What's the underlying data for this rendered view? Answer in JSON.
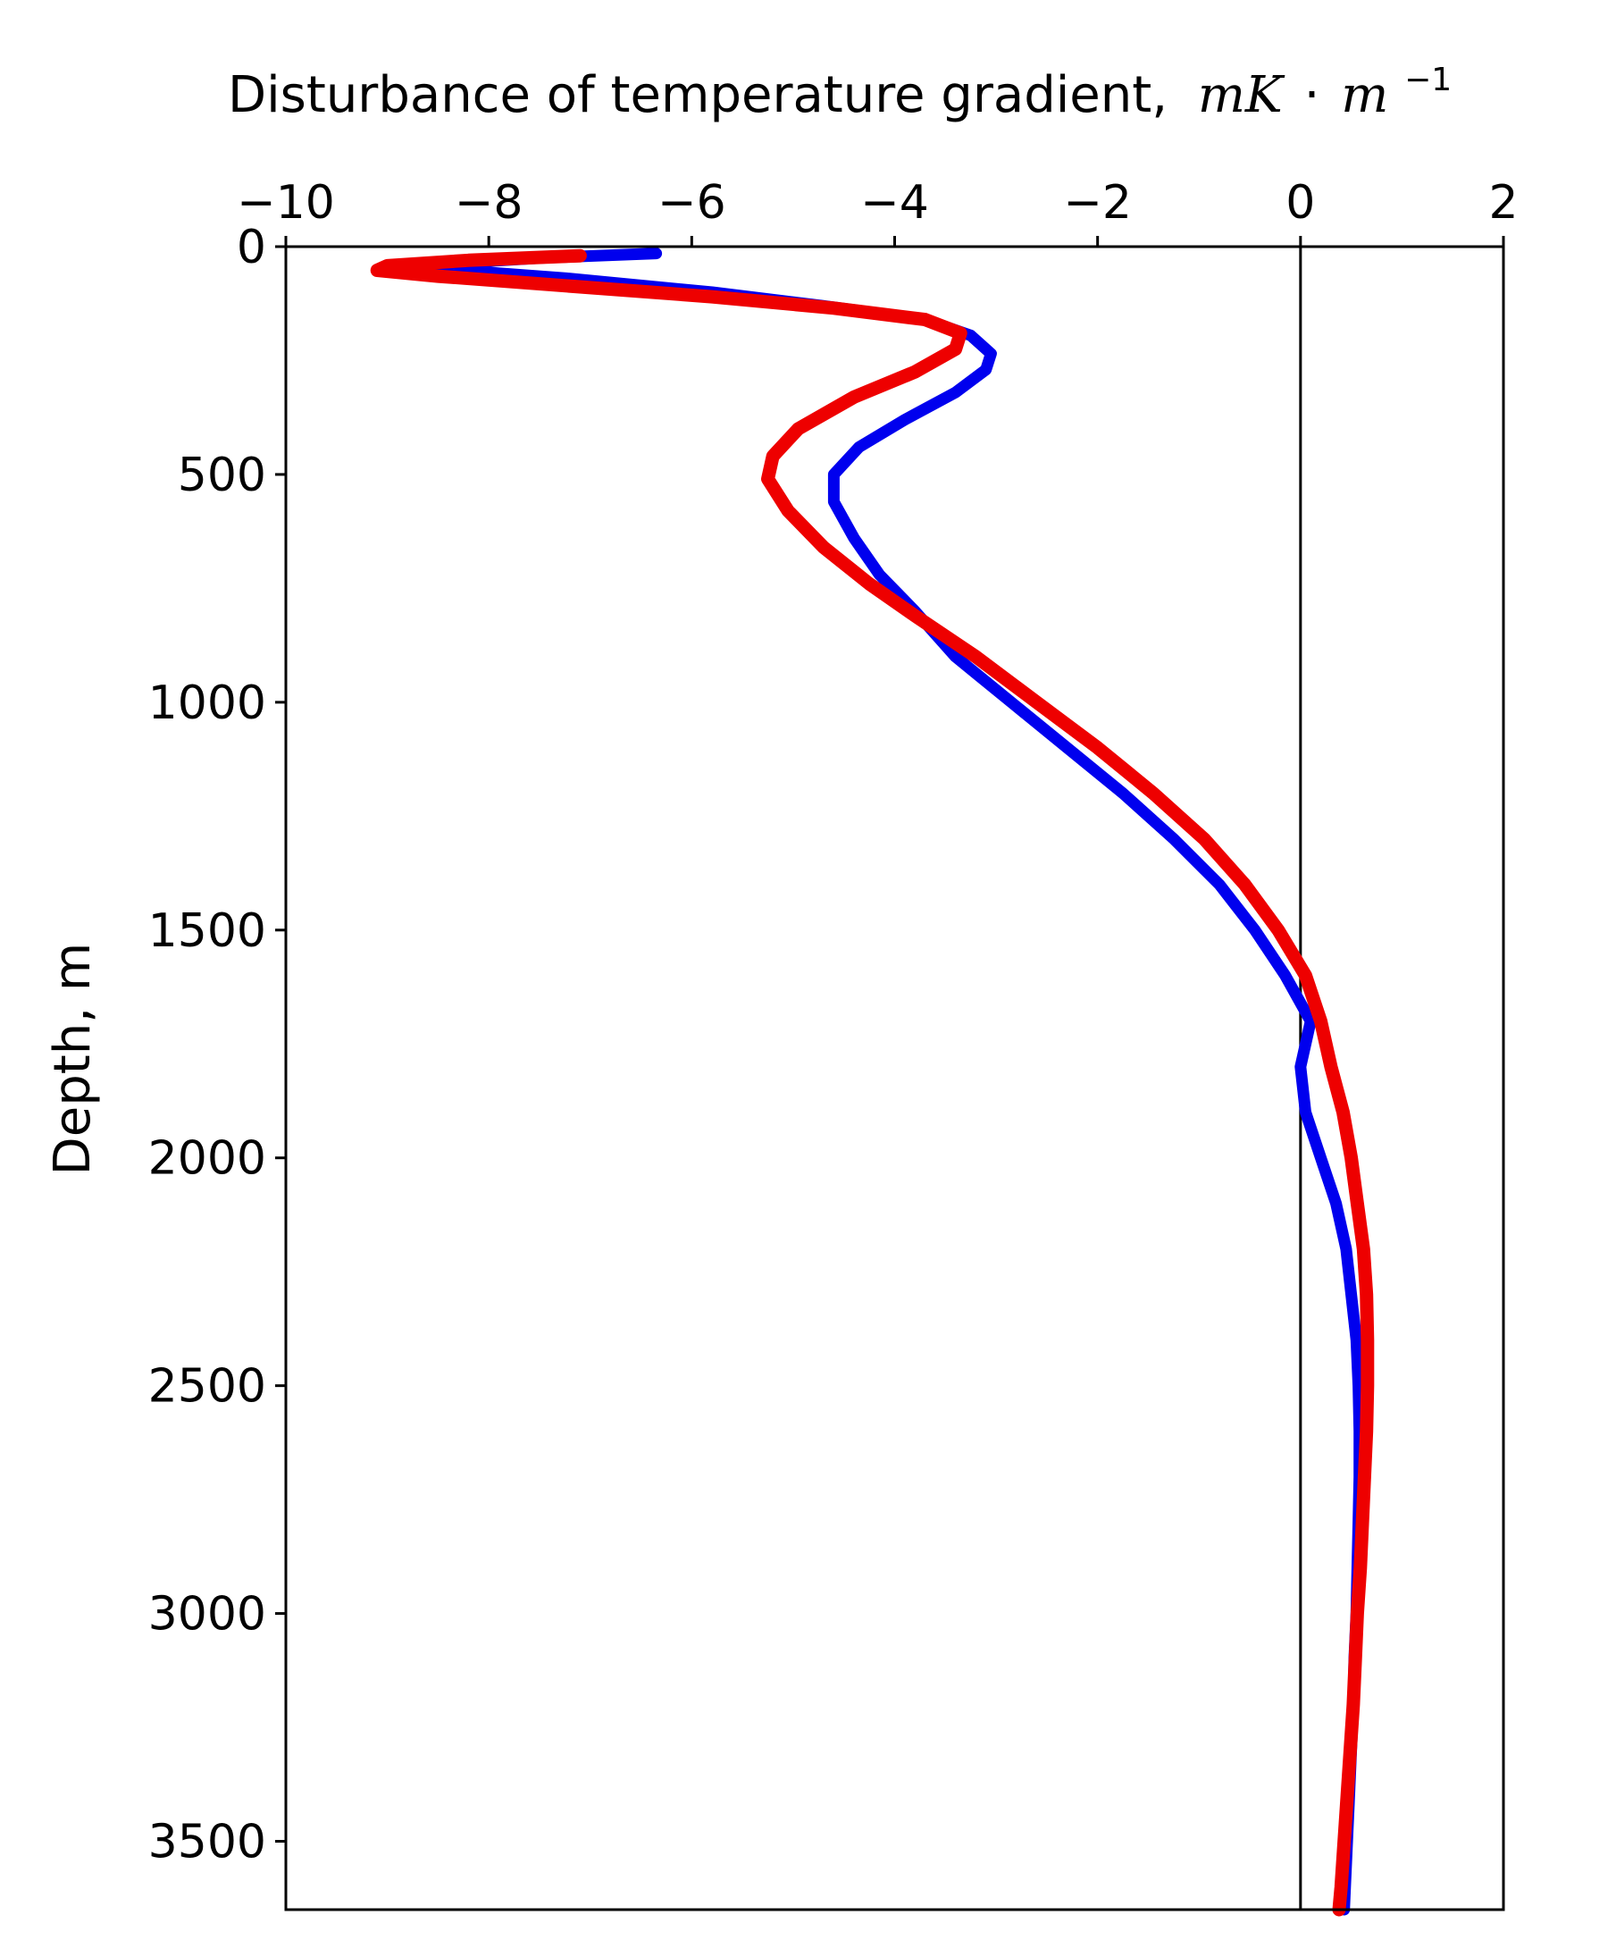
{
  "chart_data": {
    "type": "line",
    "title": "",
    "xlabel": "Disturbance of temperature gradient,",
    "xlabel_unit": {
      "base": "mK",
      "dot": "·",
      "m": "m",
      "exp": "−1"
    },
    "ylabel": "Depth, m",
    "xlim": [
      -10,
      2
    ],
    "ylim": [
      3650,
      0
    ],
    "x_axis_position": "top",
    "y_inverted": true,
    "grid": false,
    "legend": "none",
    "x_ticks": [
      -10,
      -8,
      -6,
      -4,
      -2,
      0,
      2
    ],
    "x_tick_labels": [
      "−10",
      "−8",
      "−6",
      "−4",
      "−2",
      "0",
      "2"
    ],
    "y_ticks": [
      0,
      500,
      1000,
      1500,
      2000,
      2500,
      3000,
      3500
    ],
    "y_tick_labels": [
      "0",
      "500",
      "1000",
      "1500",
      "2000",
      "2500",
      "3000",
      "3500"
    ],
    "reference_line_x": 0,
    "series": [
      {
        "color": "#0000ee",
        "points": [
          [
            -6.35,
            15
          ],
          [
            -7.5,
            25
          ],
          [
            -8.6,
            40
          ],
          [
            -8.4,
            50
          ],
          [
            -7.2,
            70
          ],
          [
            -5.8,
            100
          ],
          [
            -4.7,
            130
          ],
          [
            -3.7,
            160
          ],
          [
            -3.25,
            195
          ],
          [
            -3.05,
            235
          ],
          [
            -3.1,
            270
          ],
          [
            -3.4,
            320
          ],
          [
            -3.9,
            380
          ],
          [
            -4.35,
            440
          ],
          [
            -4.6,
            500
          ],
          [
            -4.6,
            560
          ],
          [
            -4.4,
            640
          ],
          [
            -4.15,
            720
          ],
          [
            -3.8,
            800
          ],
          [
            -3.4,
            900
          ],
          [
            -2.85,
            1000
          ],
          [
            -2.3,
            1100
          ],
          [
            -1.75,
            1200
          ],
          [
            -1.25,
            1300
          ],
          [
            -0.8,
            1400
          ],
          [
            -0.45,
            1500
          ],
          [
            -0.15,
            1600
          ],
          [
            0.1,
            1700
          ],
          [
            0.0,
            1800
          ],
          [
            0.05,
            1900
          ],
          [
            0.2,
            2000
          ],
          [
            0.35,
            2100
          ],
          [
            0.45,
            2200
          ],
          [
            0.5,
            2300
          ],
          [
            0.55,
            2400
          ],
          [
            0.57,
            2500
          ],
          [
            0.58,
            2600
          ],
          [
            0.58,
            2700
          ],
          [
            0.57,
            2800
          ],
          [
            0.56,
            2900
          ],
          [
            0.55,
            3000
          ],
          [
            0.53,
            3100
          ],
          [
            0.52,
            3200
          ],
          [
            0.5,
            3300
          ],
          [
            0.48,
            3400
          ],
          [
            0.46,
            3500
          ],
          [
            0.44,
            3600
          ],
          [
            0.43,
            3650
          ]
        ]
      },
      {
        "color": "#ee0000",
        "points": [
          [
            -7.1,
            20
          ],
          [
            -8.2,
            30
          ],
          [
            -9.0,
            42
          ],
          [
            -9.1,
            52
          ],
          [
            -8.5,
            65
          ],
          [
            -7.3,
            85
          ],
          [
            -5.8,
            110
          ],
          [
            -4.6,
            135
          ],
          [
            -3.7,
            160
          ],
          [
            -3.35,
            190
          ],
          [
            -3.4,
            225
          ],
          [
            -3.8,
            275
          ],
          [
            -4.4,
            330
          ],
          [
            -4.95,
            400
          ],
          [
            -5.2,
            460
          ],
          [
            -5.25,
            510
          ],
          [
            -5.05,
            580
          ],
          [
            -4.7,
            660
          ],
          [
            -4.25,
            740
          ],
          [
            -3.8,
            810
          ],
          [
            -3.2,
            900
          ],
          [
            -2.6,
            1000
          ],
          [
            -2.0,
            1100
          ],
          [
            -1.45,
            1200
          ],
          [
            -0.95,
            1300
          ],
          [
            -0.55,
            1400
          ],
          [
            -0.22,
            1500
          ],
          [
            0.05,
            1600
          ],
          [
            0.2,
            1700
          ],
          [
            0.3,
            1800
          ],
          [
            0.42,
            1900
          ],
          [
            0.5,
            2000
          ],
          [
            0.56,
            2100
          ],
          [
            0.62,
            2200
          ],
          [
            0.65,
            2300
          ],
          [
            0.66,
            2400
          ],
          [
            0.66,
            2500
          ],
          [
            0.65,
            2600
          ],
          [
            0.63,
            2700
          ],
          [
            0.61,
            2800
          ],
          [
            0.59,
            2900
          ],
          [
            0.56,
            3000
          ],
          [
            0.54,
            3100
          ],
          [
            0.52,
            3200
          ],
          [
            0.49,
            3300
          ],
          [
            0.46,
            3400
          ],
          [
            0.43,
            3500
          ],
          [
            0.4,
            3600
          ],
          [
            0.38,
            3650
          ]
        ]
      }
    ]
  }
}
